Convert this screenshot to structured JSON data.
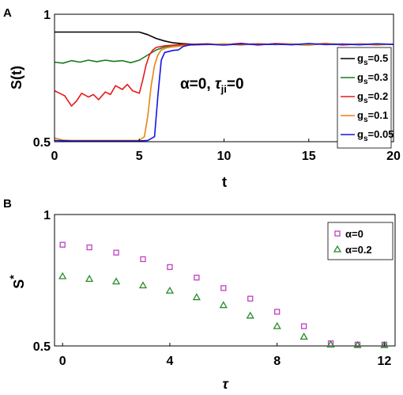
{
  "chart_data": [
    {
      "panel": "A",
      "type": "line",
      "xlabel": "t",
      "ylabel": "S(t)",
      "xlim": [
        0,
        20
      ],
      "ylim": [
        0.5,
        1
      ],
      "xticks": [
        "0",
        "5",
        "10",
        "15",
        "20"
      ],
      "yticks": [
        "0.5",
        "1"
      ],
      "annotation_parts": [
        "α=0, ",
        "τ",
        "ji",
        "=0"
      ],
      "legend_position": "right",
      "series": [
        {
          "name": "g_s=0.5",
          "label_main": "g",
          "label_sub": "s",
          "label_eq": "=0.5",
          "color": "#000000",
          "x": [
            0,
            1,
            2,
            3,
            4,
            5,
            5.5,
            6,
            6.5,
            7,
            7.5,
            8,
            9,
            10,
            11,
            12,
            13,
            14,
            15,
            16,
            17,
            18,
            19,
            20
          ],
          "y": [
            0.93,
            0.93,
            0.93,
            0.93,
            0.93,
            0.93,
            0.92,
            0.905,
            0.895,
            0.888,
            0.885,
            0.883,
            0.882,
            0.883,
            0.882,
            0.884,
            0.881,
            0.883,
            0.882,
            0.884,
            0.881,
            0.883,
            0.882,
            0.882
          ]
        },
        {
          "name": "g_s=0.3",
          "label_main": "g",
          "label_sub": "s",
          "label_eq": "=0.3",
          "color": "#1a7a1a",
          "x": [
            0,
            0.5,
            1,
            1.5,
            2,
            2.5,
            3,
            3.5,
            4,
            4.5,
            5,
            5.5,
            6,
            6.5,
            7,
            7.5,
            8,
            9,
            10,
            11,
            12,
            13,
            14,
            15,
            16,
            17,
            18,
            19,
            20
          ],
          "y": [
            0.812,
            0.808,
            0.818,
            0.812,
            0.82,
            0.814,
            0.82,
            0.815,
            0.818,
            0.81,
            0.82,
            0.84,
            0.86,
            0.872,
            0.878,
            0.88,
            0.882,
            0.884,
            0.881,
            0.885,
            0.88,
            0.884,
            0.882,
            0.879,
            0.885,
            0.882,
            0.881,
            0.884,
            0.882
          ]
        },
        {
          "name": "g_s=0.2",
          "label_main": "g",
          "label_sub": "s",
          "label_eq": "=0.2",
          "color": "#e8191a",
          "x": [
            0,
            0.3,
            0.6,
            1,
            1.3,
            1.6,
            2,
            2.3,
            2.6,
            3,
            3.3,
            3.6,
            4,
            4.3,
            4.6,
            5,
            5.2,
            5.4,
            5.6,
            5.8,
            6,
            6.5,
            7,
            7.5,
            8,
            9,
            10,
            11,
            12,
            13,
            14,
            15,
            16,
            17,
            18,
            19,
            20
          ],
          "y": [
            0.7,
            0.69,
            0.68,
            0.64,
            0.66,
            0.69,
            0.675,
            0.685,
            0.665,
            0.695,
            0.685,
            0.72,
            0.705,
            0.725,
            0.7,
            0.69,
            0.74,
            0.8,
            0.84,
            0.86,
            0.87,
            0.876,
            0.879,
            0.882,
            0.881,
            0.884,
            0.88,
            0.886,
            0.879,
            0.885,
            0.883,
            0.88,
            0.886,
            0.879,
            0.884,
            0.881,
            0.882
          ]
        },
        {
          "name": "g_s=0.1",
          "label_main": "g",
          "label_sub": "s",
          "label_eq": "=0.1",
          "color": "#e88413",
          "x": [
            0,
            0.5,
            1,
            2,
            3,
            4,
            5,
            5.3,
            5.5,
            5.7,
            5.9,
            6.1,
            6.3,
            6.6,
            7,
            7.5,
            8,
            9,
            10,
            11,
            12,
            13,
            14,
            15,
            16,
            17,
            18,
            19,
            20
          ],
          "y": [
            0.515,
            0.506,
            0.505,
            0.505,
            0.505,
            0.505,
            0.505,
            0.52,
            0.6,
            0.72,
            0.8,
            0.84,
            0.86,
            0.868,
            0.872,
            0.876,
            0.879,
            0.881,
            0.884,
            0.879,
            0.885,
            0.881,
            0.883,
            0.88,
            0.885,
            0.881,
            0.884,
            0.879,
            0.883
          ]
        },
        {
          "name": "g_s=0.05",
          "label_main": "g",
          "label_sub": "s",
          "label_eq": "=0.05",
          "color": "#1414e6",
          "x": [
            0,
            1,
            2,
            3,
            4,
            5,
            5.5,
            5.9,
            6.1,
            6.3,
            6.5,
            6.8,
            7,
            7.3,
            7.6,
            8,
            9,
            10,
            11,
            12,
            13,
            14,
            15,
            16,
            17,
            18,
            19,
            20
          ],
          "y": [
            0.505,
            0.503,
            0.503,
            0.503,
            0.503,
            0.503,
            0.505,
            0.52,
            0.68,
            0.82,
            0.85,
            0.855,
            0.858,
            0.86,
            0.874,
            0.88,
            0.882,
            0.879,
            0.884,
            0.881,
            0.883,
            0.88,
            0.885,
            0.881,
            0.883,
            0.88,
            0.884,
            0.882
          ]
        }
      ]
    },
    {
      "panel": "B",
      "type": "scatter",
      "xlabel": "τ",
      "ylabel_main": "S",
      "ylabel_sup": "*",
      "xlim": [
        -0.3,
        12.4
      ],
      "ylim": [
        0.5,
        1
      ],
      "xticks": [
        "0",
        "4",
        "8",
        "12"
      ],
      "yticks": [
        "0.5",
        "1"
      ],
      "legend_position": "top-right",
      "series": [
        {
          "name": "α=0",
          "marker": "square",
          "color": "#c040c0",
          "x": [
            0,
            1,
            2,
            3,
            4,
            5,
            6,
            7,
            8,
            9,
            10,
            11,
            12
          ],
          "y": [
            0.885,
            0.875,
            0.855,
            0.83,
            0.8,
            0.76,
            0.72,
            0.68,
            0.63,
            0.575,
            0.51,
            0.505,
            0.505
          ]
        },
        {
          "name": "α=0.2",
          "marker": "triangle",
          "color": "#2a8a2a",
          "x": [
            0,
            1,
            2,
            3,
            4,
            5,
            6,
            7,
            8,
            9,
            10,
            11,
            12
          ],
          "y": [
            0.765,
            0.755,
            0.745,
            0.73,
            0.71,
            0.685,
            0.655,
            0.615,
            0.575,
            0.535,
            0.505,
            0.503,
            0.503
          ]
        }
      ]
    }
  ]
}
